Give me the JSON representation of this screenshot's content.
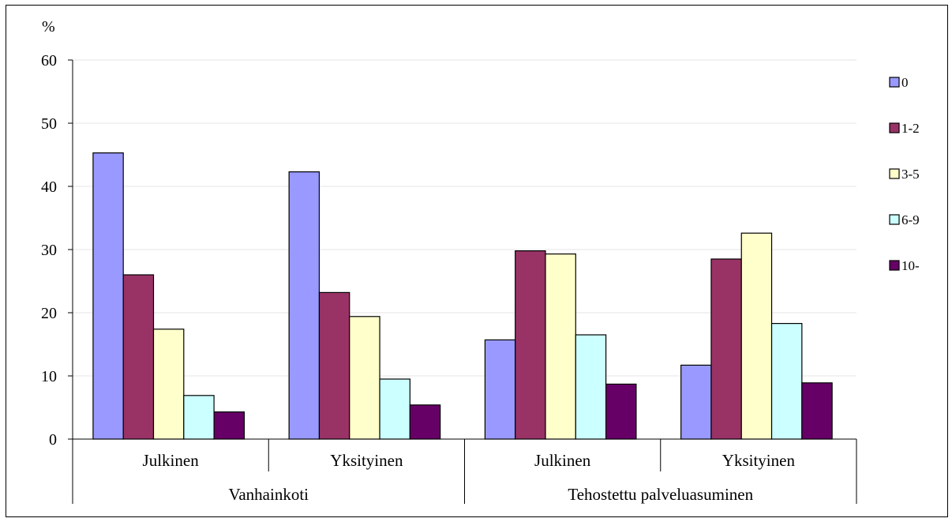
{
  "chart_data": {
    "type": "bar",
    "ylabel": "%",
    "ylim": [
      0,
      60
    ],
    "yticks": [
      "0",
      "10",
      "20",
      "30",
      "40",
      "50",
      "60"
    ],
    "categories": [
      "Julkinen",
      "Yksityinen",
      "Julkinen",
      "Yksityinen"
    ],
    "groups": [
      {
        "label": "Vanhainkoti",
        "span": [
          0,
          1
        ]
      },
      {
        "label": "Tehostettu palveluasuminen",
        "span": [
          2,
          3
        ]
      }
    ],
    "series": [
      {
        "name": "0",
        "color": "#9999ff",
        "values": [
          45.3,
          42.3,
          15.7,
          11.7
        ]
      },
      {
        "name": "1-2",
        "color": "#993366",
        "values": [
          26.0,
          23.2,
          29.8,
          28.5
        ]
      },
      {
        "name": "3-5",
        "color": "#ffffcc",
        "values": [
          17.4,
          19.4,
          29.3,
          32.6
        ]
      },
      {
        "name": "6-9",
        "color": "#ccffff",
        "values": [
          6.9,
          9.5,
          16.5,
          18.3
        ]
      },
      {
        "name": "10-",
        "color": "#660066",
        "values": [
          4.3,
          5.4,
          8.7,
          8.9
        ]
      }
    ],
    "grid": true,
    "legend": "right"
  }
}
